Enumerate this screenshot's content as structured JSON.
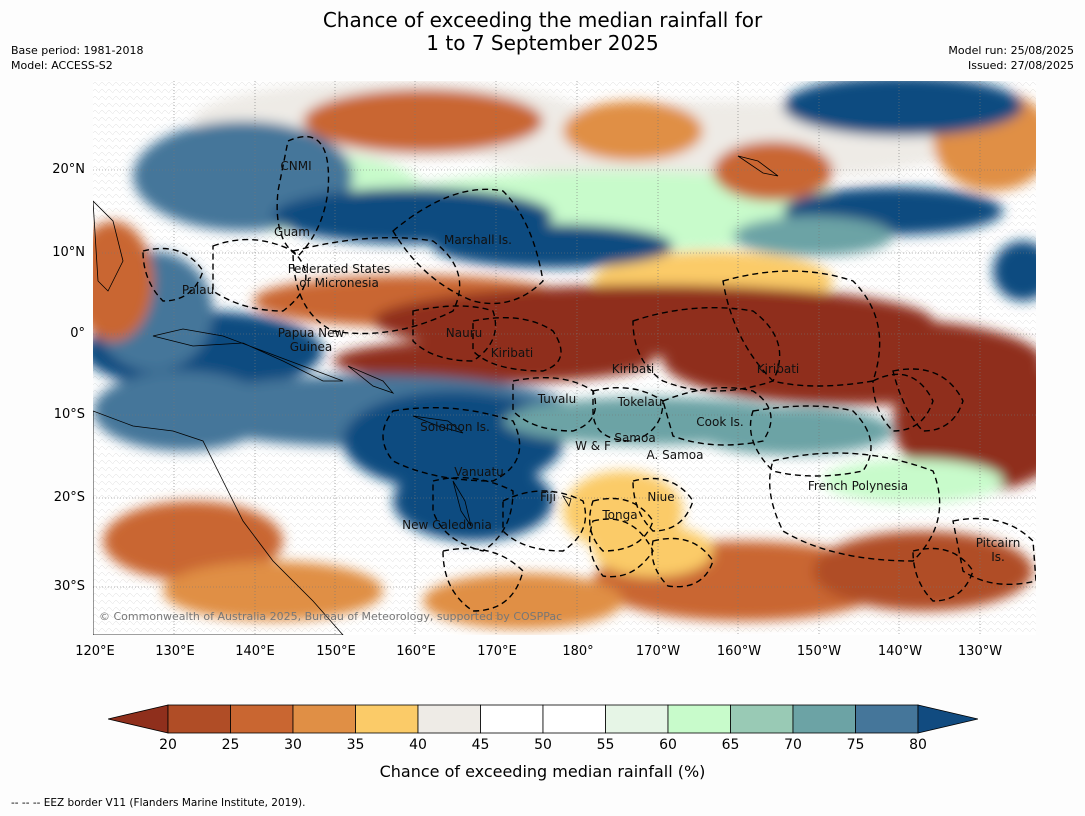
{
  "header": {
    "title_line1": "Chance of exceeding the median rainfall for",
    "title_line2": "1 to 7 September 2025",
    "base_period": "Base period: 1981-2018",
    "model": "Model: ACCESS-S2",
    "model_run": "Model run: 25/08/2025",
    "issued": "Issued: 27/08/2025"
  },
  "map": {
    "lat_labels": [
      "20°N",
      "10°N",
      "0°",
      "10°S",
      "20°S",
      "30°S"
    ],
    "lon_labels": [
      "120°E",
      "130°E",
      "140°E",
      "150°E",
      "160°E",
      "170°E",
      "180°",
      "170°W",
      "160°W",
      "150°W",
      "140°W",
      "130°W"
    ],
    "regions": {
      "cnmi": "CNMI",
      "guam": "Guam",
      "marshall": "Marshall Is.",
      "fsm_line1": "Federated States",
      "fsm_line2": "of Micronesia",
      "palau": "Palau",
      "png_line1": "Papua New",
      "png_line2": "Guinea",
      "nauru": "Nauru",
      "kiribati_w": "Kiribati",
      "kiribati_c": "Kiribati",
      "kiribati_e": "Kiribati",
      "tuvalu": "Tuvalu",
      "tokelau": "Tokelau",
      "cook": "Cook Is.",
      "solomon": "Solomon Is.",
      "samoa": "Samoa",
      "wf": "W & F",
      "asamoa": "A. Samoa",
      "vanuatu": "Vanuatu",
      "fiji": "Fiji",
      "niue": "Niue",
      "tonga": "Tonga",
      "frenchpoly": "French Polynesia",
      "newcal": "New Caledonia",
      "pitcairn_line1": "Pitcairn",
      "pitcairn_line2": "Is."
    },
    "copyright": "© Commonwealth of Australia 2025, Bureau of Meteorology, supported by COSPPac"
  },
  "colorbar": {
    "ticks": [
      "20",
      "25",
      "30",
      "35",
      "40",
      "45",
      "50",
      "55",
      "60",
      "65",
      "70",
      "75",
      "80"
    ],
    "colors": [
      "#8f2f1c",
      "#b04d26",
      "#c96631",
      "#e08f45",
      "#fbcb68",
      "#eeebe6",
      "#ffffff",
      "#ffffff",
      "#e6f5e6",
      "#c8fbcb",
      "#99cab5",
      "#6ca3a5",
      "#45769a",
      "#114b80"
    ],
    "label": "Chance of exceeding median rainfall (%)"
  },
  "footnote": "--  --  -- EEZ border V11 (Flanders Marine Institute, 2019)."
}
